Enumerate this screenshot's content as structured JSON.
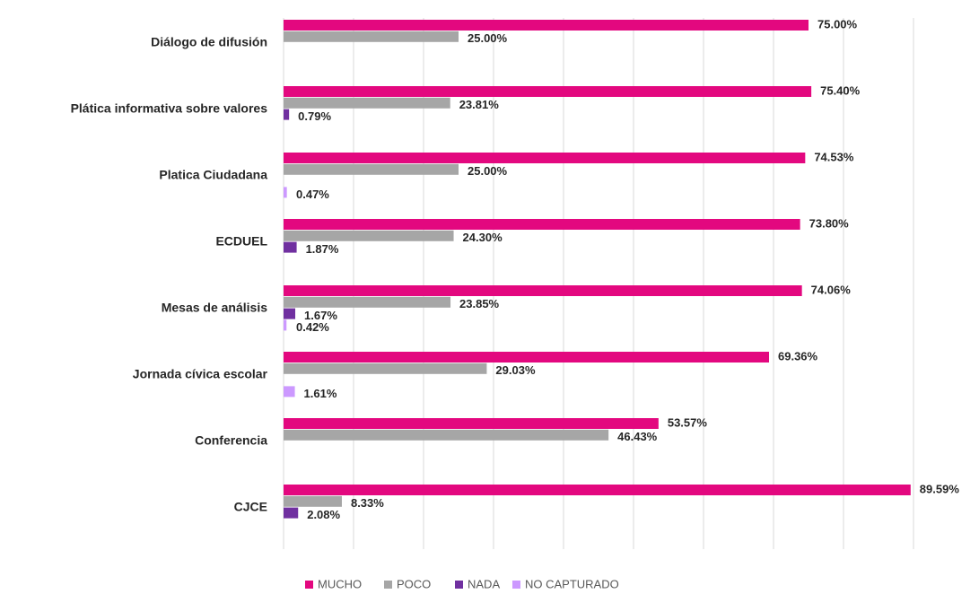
{
  "chart_data": {
    "type": "hbar",
    "categories": [
      "Diálogo de difusión",
      "Plática informativa sobre valores",
      "Platica Ciudadana",
      "ECDUEL",
      "Mesas de análisis",
      "Jornada cívica escolar",
      "Conferencia",
      "CJCE"
    ],
    "series": [
      {
        "name": "MUCHO",
        "color": "#e3087f",
        "values": [
          75,
          75.4,
          74.53,
          73.8,
          74.06,
          69.36,
          53.57,
          89.59
        ],
        "value_labels": [
          "75.00%",
          "75.40%",
          "74.53%",
          "73.80%",
          "74.06%",
          "69.36%",
          "53.57%",
          "89.59%"
        ]
      },
      {
        "name": "POCO",
        "color": "#a6a6a6",
        "values": [
          25,
          23.81,
          25,
          24.3,
          23.85,
          29.03,
          46.43,
          8.33
        ],
        "value_labels": [
          "25.00%",
          "23.81%",
          "25.00%",
          "24.30%",
          "23.85%",
          "29.03%",
          "46.43%",
          "8.33%"
        ]
      },
      {
        "name": "NADA",
        "color": "#7030a0",
        "values": [
          null,
          0.79,
          null,
          1.87,
          1.67,
          null,
          null,
          2.08
        ],
        "value_labels": [
          null,
          "0.79%",
          null,
          "1.87%",
          "1.67%",
          null,
          null,
          "2.08%"
        ]
      },
      {
        "name": "NO  CAPTURADO",
        "color": "#cc99ff",
        "values": [
          null,
          null,
          0.47,
          null,
          0.42,
          1.61,
          null,
          null
        ],
        "value_labels": [
          null,
          null,
          "0.47%",
          null,
          "0.42%",
          "1.61%",
          null,
          null
        ]
      }
    ],
    "xlim": [
      0,
      90
    ],
    "xticks": [
      0,
      10,
      20,
      30,
      40,
      50,
      60,
      70,
      80,
      90
    ],
    "grid": true,
    "legend": "bottom"
  }
}
